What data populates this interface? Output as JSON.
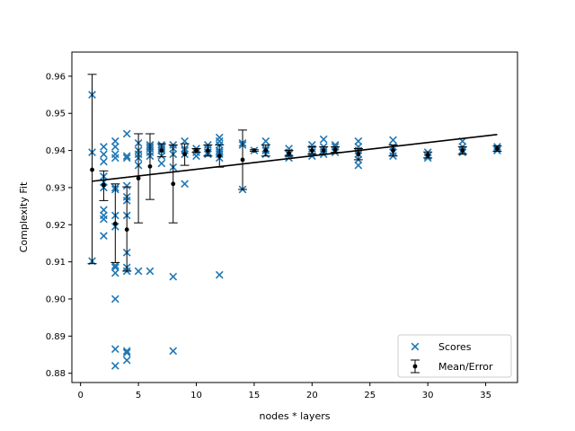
{
  "chart_data": {
    "type": "scatter",
    "title": "",
    "xlabel": "nodes * layers",
    "ylabel": "Complexity Fit",
    "xlim": [
      -0.75,
      37.75
    ],
    "ylim": [
      0.8775,
      0.9665
    ],
    "xticks": [
      0,
      5,
      10,
      15,
      20,
      25,
      30,
      35
    ],
    "yticks": [
      0.88,
      0.89,
      0.9,
      0.91,
      0.92,
      0.93,
      0.94,
      0.95,
      0.96
    ],
    "grid": false,
    "legend": {
      "position": "lower-right",
      "entries": [
        {
          "label": "Scores",
          "marker": "x",
          "color": "#1f77b4"
        },
        {
          "label": "Mean/Error",
          "marker": "errorbar-dot",
          "color": "#000000"
        }
      ]
    },
    "series": [
      {
        "name": "Scores",
        "kind": "scatter",
        "marker": "x",
        "color": "#1f77b4",
        "points": [
          [
            1,
            0.955
          ],
          [
            1,
            0.9395
          ],
          [
            1,
            0.9102
          ],
          [
            2,
            0.941
          ],
          [
            2,
            0.939
          ],
          [
            2,
            0.937
          ],
          [
            2,
            0.933
          ],
          [
            2,
            0.9315
          ],
          [
            2,
            0.93
          ],
          [
            2,
            0.924
          ],
          [
            2,
            0.9225
          ],
          [
            2,
            0.9215
          ],
          [
            2,
            0.917
          ],
          [
            3,
            0.9425
          ],
          [
            3,
            0.941
          ],
          [
            3,
            0.939
          ],
          [
            3,
            0.938
          ],
          [
            3,
            0.93
          ],
          [
            3,
            0.9295
          ],
          [
            3,
            0.9225
          ],
          [
            3,
            0.9195
          ],
          [
            3,
            0.909
          ],
          [
            3,
            0.9085
          ],
          [
            3,
            0.907
          ],
          [
            3,
            0.9
          ],
          [
            3,
            0.8865
          ],
          [
            3,
            0.882
          ],
          [
            4,
            0.9445
          ],
          [
            4,
            0.9385
          ],
          [
            4,
            0.938
          ],
          [
            4,
            0.9305
          ],
          [
            4,
            0.9275
          ],
          [
            4,
            0.9265
          ],
          [
            4,
            0.9225
          ],
          [
            4,
            0.9125
          ],
          [
            4,
            0.9085
          ],
          [
            4,
            0.9075
          ],
          [
            4,
            0.886
          ],
          [
            4,
            0.8855
          ],
          [
            4,
            0.8835
          ],
          [
            5,
            0.942
          ],
          [
            5,
            0.94
          ],
          [
            5,
            0.939
          ],
          [
            5,
            0.938
          ],
          [
            5,
            0.936
          ],
          [
            5,
            0.9075
          ],
          [
            6,
            0.9415
          ],
          [
            6,
            0.941
          ],
          [
            6,
            0.9405
          ],
          [
            6,
            0.9395
          ],
          [
            6,
            0.9385
          ],
          [
            6,
            0.9075
          ],
          [
            7,
            0.9415
          ],
          [
            7,
            0.941
          ],
          [
            7,
            0.9405
          ],
          [
            7,
            0.94
          ],
          [
            7,
            0.9385
          ],
          [
            7,
            0.9365
          ],
          [
            8,
            0.9415
          ],
          [
            8,
            0.9405
          ],
          [
            8,
            0.939
          ],
          [
            8,
            0.9355
          ],
          [
            8,
            0.906
          ],
          [
            8,
            0.886
          ],
          [
            9,
            0.9425
          ],
          [
            9,
            0.9405
          ],
          [
            9,
            0.94
          ],
          [
            9,
            0.939
          ],
          [
            9,
            0.931
          ],
          [
            10,
            0.9405
          ],
          [
            10,
            0.9395
          ],
          [
            10,
            0.9385
          ],
          [
            11,
            0.9415
          ],
          [
            11,
            0.9405
          ],
          [
            11,
            0.9395
          ],
          [
            11,
            0.939
          ],
          [
            12,
            0.9435
          ],
          [
            12,
            0.9425
          ],
          [
            12,
            0.9415
          ],
          [
            12,
            0.94
          ],
          [
            12,
            0.9395
          ],
          [
            12,
            0.939
          ],
          [
            12,
            0.938
          ],
          [
            12,
            0.9065
          ],
          [
            14,
            0.942
          ],
          [
            14,
            0.9415
          ],
          [
            14,
            0.9295
          ],
          [
            15,
            0.94
          ],
          [
            16,
            0.9425
          ],
          [
            16,
            0.9405
          ],
          [
            16,
            0.94
          ],
          [
            16,
            0.939
          ],
          [
            18,
            0.9405
          ],
          [
            18,
            0.9395
          ],
          [
            18,
            0.939
          ],
          [
            18,
            0.938
          ],
          [
            20,
            0.9415
          ],
          [
            20,
            0.9405
          ],
          [
            20,
            0.9395
          ],
          [
            20,
            0.9385
          ],
          [
            21,
            0.943
          ],
          [
            21,
            0.941
          ],
          [
            21,
            0.94
          ],
          [
            21,
            0.939
          ],
          [
            22,
            0.9415
          ],
          [
            22,
            0.941
          ],
          [
            22,
            0.9395
          ],
          [
            24,
            0.9425
          ],
          [
            24,
            0.941
          ],
          [
            24,
            0.94
          ],
          [
            24,
            0.939
          ],
          [
            24,
            0.9375
          ],
          [
            24,
            0.936
          ],
          [
            27,
            0.9428
          ],
          [
            27,
            0.941
          ],
          [
            27,
            0.9395
          ],
          [
            27,
            0.9385
          ],
          [
            30,
            0.9395
          ],
          [
            30,
            0.9385
          ],
          [
            30,
            0.938
          ],
          [
            33,
            0.9425
          ],
          [
            33,
            0.941
          ],
          [
            33,
            0.94
          ],
          [
            33,
            0.9395
          ],
          [
            36,
            0.941
          ],
          [
            36,
            0.9405
          ],
          [
            36,
            0.94
          ]
        ]
      },
      {
        "name": "Mean/Error",
        "kind": "errorbar",
        "color": "#000000",
        "points": [
          {
            "x": 1,
            "mean": 0.9348,
            "low": 0.9095,
            "high": 0.9605
          },
          {
            "x": 2,
            "mean": 0.9307,
            "low": 0.9265,
            "high": 0.9345
          },
          {
            "x": 3,
            "mean": 0.9203,
            "low": 0.9098,
            "high": 0.931
          },
          {
            "x": 4,
            "mean": 0.9187,
            "low": 0.9075,
            "high": 0.9302
          },
          {
            "x": 5,
            "mean": 0.9325,
            "low": 0.9205,
            "high": 0.9445
          },
          {
            "x": 6,
            "mean": 0.9357,
            "low": 0.9268,
            "high": 0.9445
          },
          {
            "x": 7,
            "mean": 0.94,
            "low": 0.9383,
            "high": 0.9418
          },
          {
            "x": 8,
            "mean": 0.931,
            "low": 0.9205,
            "high": 0.9415
          },
          {
            "x": 9,
            "mean": 0.939,
            "low": 0.936,
            "high": 0.9418
          },
          {
            "x": 10,
            "mean": 0.94,
            "low": 0.9395,
            "high": 0.9405
          },
          {
            "x": 11,
            "mean": 0.94,
            "low": 0.9385,
            "high": 0.9415
          },
          {
            "x": 12,
            "mean": 0.9385,
            "low": 0.9355,
            "high": 0.9415
          },
          {
            "x": 14,
            "mean": 0.9375,
            "low": 0.9295,
            "high": 0.9455
          },
          {
            "x": 15,
            "mean": 0.94,
            "low": 0.9398,
            "high": 0.9402
          },
          {
            "x": 16,
            "mean": 0.94,
            "low": 0.9385,
            "high": 0.9415
          },
          {
            "x": 18,
            "mean": 0.9392,
            "low": 0.9385,
            "high": 0.94
          },
          {
            "x": 20,
            "mean": 0.94,
            "low": 0.939,
            "high": 0.941
          },
          {
            "x": 21,
            "mean": 0.94,
            "low": 0.939,
            "high": 0.941
          },
          {
            "x": 22,
            "mean": 0.9402,
            "low": 0.9395,
            "high": 0.941
          },
          {
            "x": 24,
            "mean": 0.939,
            "low": 0.9375,
            "high": 0.9405
          },
          {
            "x": 27,
            "mean": 0.94,
            "low": 0.9385,
            "high": 0.9415
          },
          {
            "x": 30,
            "mean": 0.9388,
            "low": 0.938,
            "high": 0.9396
          },
          {
            "x": 33,
            "mean": 0.94,
            "low": 0.939,
            "high": 0.941
          },
          {
            "x": 36,
            "mean": 0.9405,
            "low": 0.9398,
            "high": 0.9412
          }
        ]
      },
      {
        "name": "Trend",
        "kind": "line",
        "color": "#000000",
        "points": [
          [
            1,
            0.9317
          ],
          [
            36,
            0.9443
          ]
        ]
      }
    ]
  }
}
